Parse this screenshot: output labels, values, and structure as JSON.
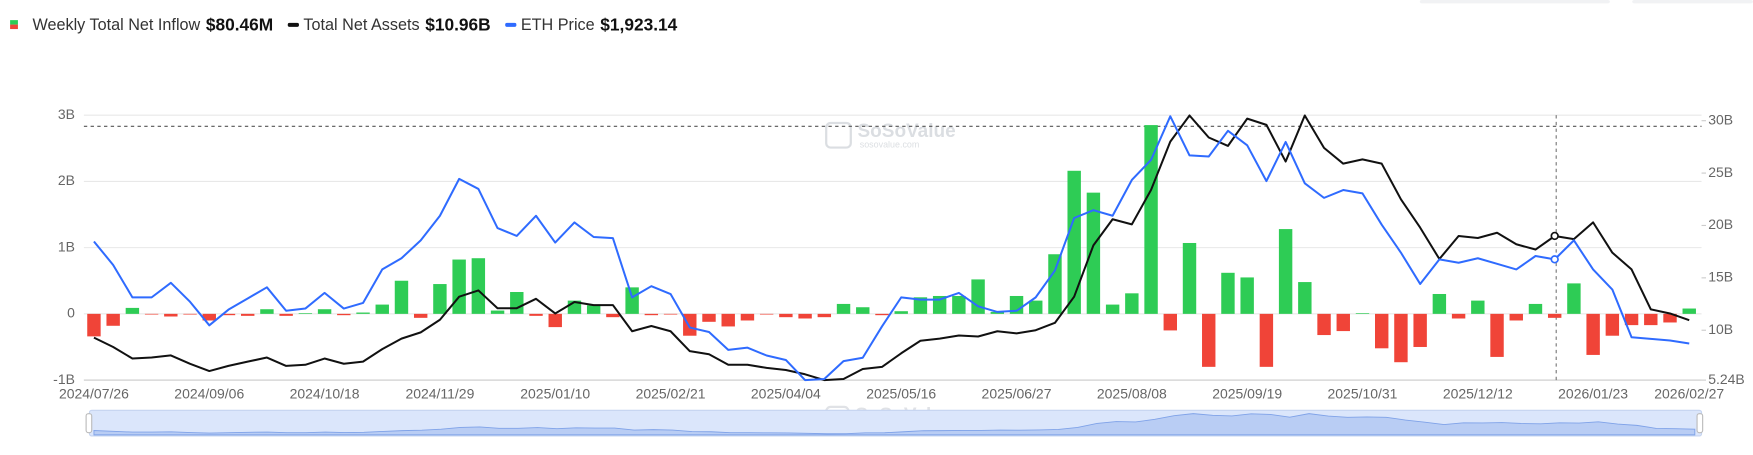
{
  "chart_data": {
    "type": "bar",
    "categories": [
      "2024/07/26",
      null,
      null,
      null,
      null,
      null,
      "2024/09/06",
      null,
      null,
      null,
      null,
      null,
      "2024/10/18",
      null,
      null,
      null,
      null,
      null,
      "2024/11/29",
      null,
      null,
      null,
      null,
      null,
      "2025/01/10",
      null,
      null,
      null,
      null,
      null,
      "2025/02/21",
      null,
      null,
      null,
      null,
      null,
      "2025/04/04",
      null,
      null,
      null,
      null,
      null,
      "2025/05/16",
      null,
      null,
      null,
      null,
      null,
      "2025/06/27",
      null,
      null,
      null,
      null,
      null,
      "2025/08/08",
      null,
      null,
      null,
      null,
      null,
      "2025/09/19",
      null,
      null,
      null,
      null,
      null,
      "2025/10/31",
      null,
      null,
      null,
      null,
      null,
      "2025/12/12",
      null,
      null,
      null,
      null,
      null,
      "2026/01/23",
      null,
      null,
      null,
      null,
      "2026/02/27"
    ],
    "series": [
      {
        "name": "Weekly Total Net Inflow",
        "latest_label": "$80.46M",
        "type": "bar",
        "color_positive": "#2ecc55",
        "color_negative": "#f04438",
        "values": [
          -0.34,
          -0.18,
          0.09,
          -0.01,
          -0.04,
          -0.01,
          -0.1,
          -0.02,
          -0.03,
          0.07,
          -0.03,
          0.01,
          0.07,
          -0.02,
          0.02,
          0.14,
          0.5,
          -0.06,
          0.45,
          0.82,
          0.84,
          0.05,
          0.33,
          -0.03,
          -0.2,
          0.2,
          0.13,
          -0.05,
          0.4,
          -0.02,
          -0.01,
          -0.33,
          -0.12,
          -0.19,
          -0.1,
          -0.01,
          -0.05,
          -0.07,
          -0.05,
          0.15,
          0.1,
          -0.02,
          0.04,
          0.25,
          0.27,
          0.27,
          0.52,
          0.03,
          0.27,
          0.2,
          0.9,
          2.16,
          1.83,
          0.14,
          0.31,
          2.85,
          -0.25,
          1.07,
          -0.8,
          0.62,
          0.55,
          -0.8,
          1.28,
          0.48,
          -0.32,
          -0.26,
          0.01,
          -0.52,
          -0.73,
          -0.5,
          0.3,
          -0.07,
          0.2,
          -0.65,
          -0.1,
          0.15,
          -0.06,
          0.46,
          -0.62,
          -0.33,
          -0.17,
          -0.17,
          -0.13,
          0.08046
        ]
      },
      {
        "name": "Total Net Assets",
        "latest_label": "$10.96B",
        "type": "line",
        "axis": "y2",
        "color": "#111111",
        "values": [
          9.3,
          8.4,
          7.3,
          7.4,
          7.6,
          6.8,
          6.1,
          6.6,
          7.0,
          7.4,
          6.6,
          6.7,
          7.3,
          6.8,
          7.0,
          8.2,
          9.2,
          9.8,
          11.0,
          13.2,
          13.8,
          12.1,
          12.1,
          13.0,
          11.6,
          12.7,
          12.4,
          12.4,
          9.9,
          10.4,
          9.9,
          8.0,
          7.7,
          6.7,
          6.7,
          6.4,
          6.2,
          5.8,
          5.24,
          5.35,
          6.3,
          6.5,
          7.8,
          9.0,
          9.2,
          9.5,
          9.4,
          9.9,
          9.7,
          10.0,
          10.7,
          13.2,
          18.1,
          20.6,
          20.1,
          23.4,
          28.0,
          30.5,
          28.4,
          27.6,
          30.2,
          29.6,
          26.1,
          30.5,
          27.4,
          25.9,
          26.3,
          25.9,
          22.5,
          19.8,
          16.8,
          19.0,
          18.8,
          19.3,
          18.2,
          17.7,
          19.0,
          18.7,
          20.3,
          17.4,
          15.8,
          12.0,
          11.6,
          10.96
        ]
      },
      {
        "name": "ETH Price",
        "latest_label": "$1,923.14",
        "type": "line",
        "axis": "y3",
        "color": "#2f6bff",
        "values": [
          3186,
          2895,
          2494,
          2494,
          2674,
          2439,
          2148,
          2342,
          2480,
          2619,
          2328,
          2356,
          2549,
          2356,
          2425,
          2840,
          2978,
          3200,
          3504,
          3961,
          3837,
          3352,
          3255,
          3504,
          3172,
          3421,
          3241,
          3227,
          2494,
          2632,
          2536,
          2120,
          2065,
          1844,
          1871,
          1774,
          1719,
          1470,
          1484,
          1705,
          1747,
          2134,
          2494,
          2466,
          2466,
          2549,
          2383,
          2314,
          2328,
          2494,
          2826,
          3477,
          3574,
          3504,
          3947,
          4196,
          4736,
          4252,
          4238,
          4556,
          4376,
          3933,
          4418,
          3906,
          3726,
          3823,
          3781,
          3394,
          3048,
          2660,
          2965,
          2923,
          2978,
          2909,
          2840,
          3006,
          2965,
          3200,
          2840,
          2591,
          2000,
          1980,
          1960,
          1923.14
        ]
      }
    ],
    "ylim": [
      -1,
      3
    ],
    "yticks": [
      {
        "value": -1,
        "label": "-1B"
      },
      0,
      {
        "value": 1,
        "label": "1B"
      },
      {
        "value": 2,
        "label": "2B"
      },
      {
        "value": 3,
        "label": "3B"
      }
    ],
    "y2lim": [
      5.24,
      30.53
    ],
    "y2ticks": [
      {
        "value": 5.24,
        "label": "5.24B"
      },
      {
        "value": 10,
        "label": "10B"
      },
      {
        "value": 15,
        "label": "15B"
      },
      {
        "value": 20,
        "label": "20B"
      },
      {
        "value": 25,
        "label": "25B"
      },
      {
        "value": 30,
        "label": "30B"
      }
    ],
    "y3lim": [
      1470,
      4750
    ],
    "grid": true,
    "watermark": "SoSoValue",
    "watermark_sub": "sosovalue.com"
  }
}
